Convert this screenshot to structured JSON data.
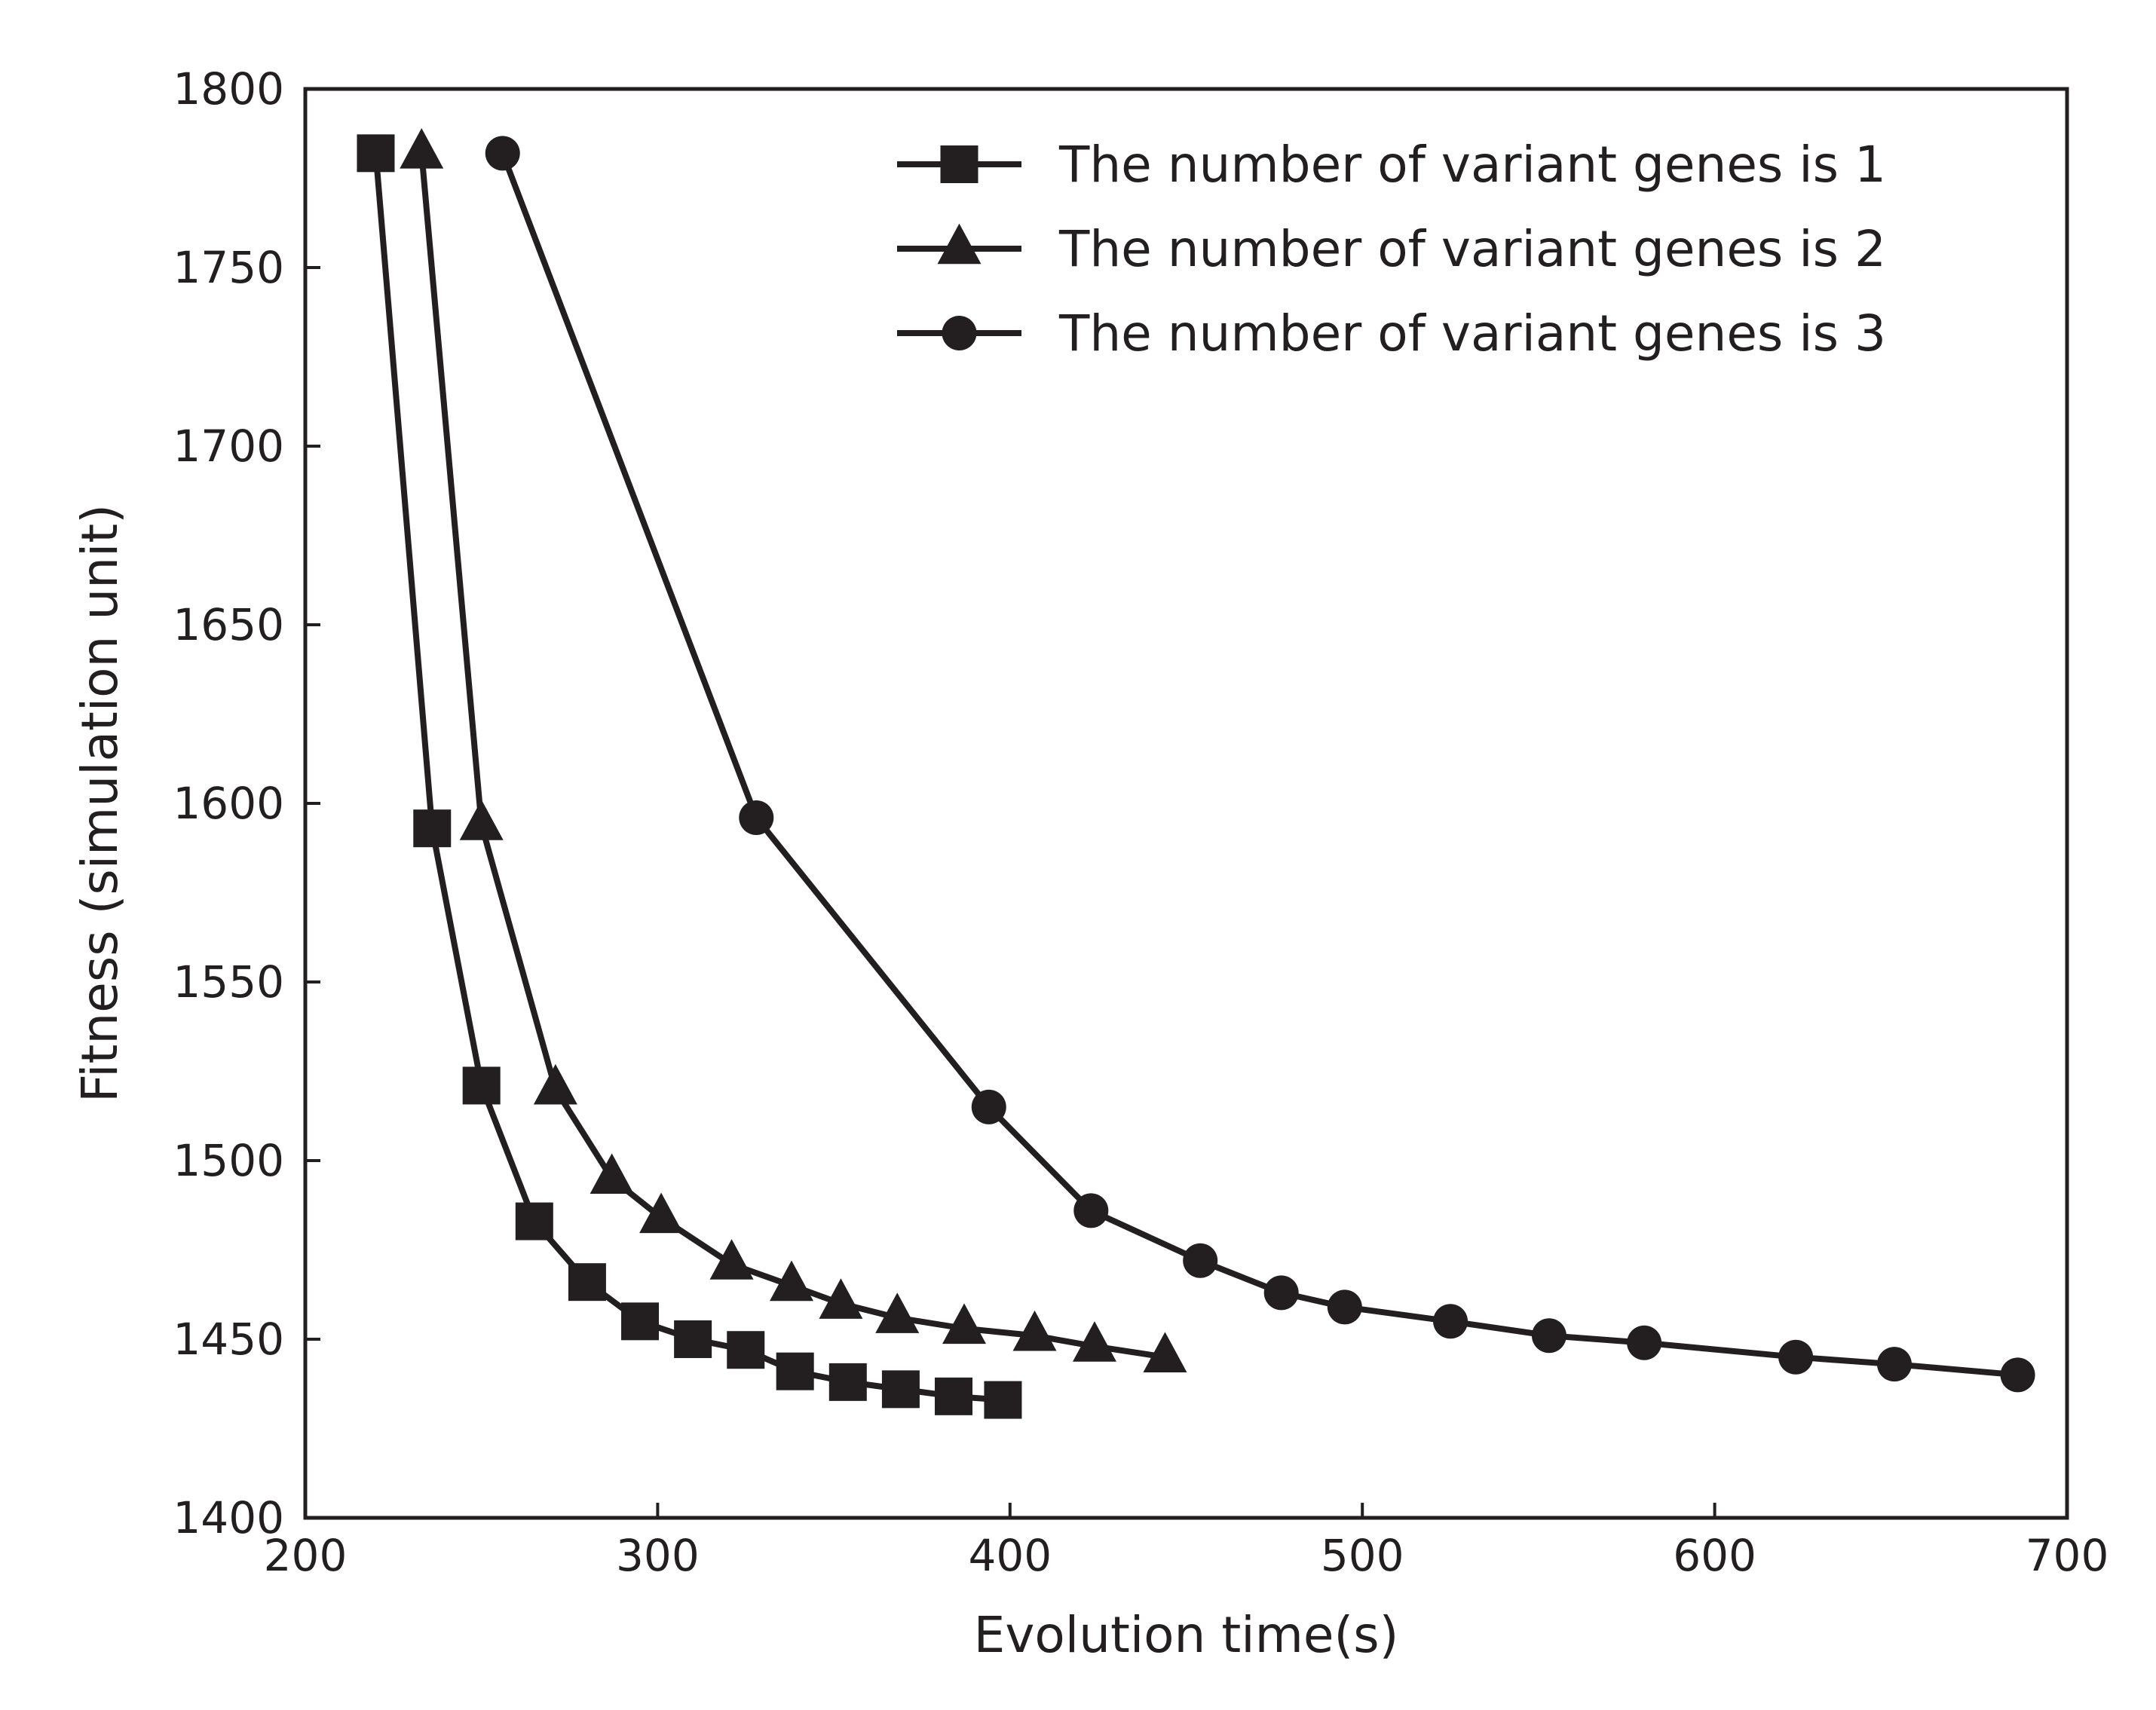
{
  "chart_data": {
    "type": "line",
    "title": "",
    "xlabel": "Evolution time(s)",
    "ylabel": "Fitness (simulation unit)",
    "xlim": [
      200,
      700
    ],
    "ylim": [
      1400,
      1800
    ],
    "xticks": [
      200,
      300,
      400,
      500,
      600,
      700
    ],
    "yticks": [
      1400,
      1450,
      1500,
      1550,
      1600,
      1650,
      1700,
      1750,
      1800
    ],
    "grid": false,
    "legend_position": "top-right",
    "line_color": "#231f20",
    "series": [
      {
        "name": "The number of variant genes is 1",
        "marker": "square",
        "x": [
          220,
          236,
          250,
          265,
          280,
          295,
          310,
          325,
          339,
          354,
          369,
          384,
          398
        ],
        "y": [
          1782,
          1593,
          1521,
          1483,
          1466,
          1455,
          1450,
          1447,
          1441,
          1438,
          1436,
          1434,
          1433
        ]
      },
      {
        "name": "The number of variant genes is 2",
        "marker": "triangle",
        "x": [
          233,
          250,
          271,
          287,
          301,
          321,
          338,
          352,
          368,
          387,
          407,
          424,
          444
        ],
        "y": [
          1782,
          1594,
          1520,
          1495,
          1484,
          1471,
          1465,
          1460,
          1456,
          1453,
          1451,
          1448,
          1445
        ]
      },
      {
        "name": "The number of variant genes is 3",
        "marker": "circle",
        "x": [
          256,
          328,
          394,
          423,
          454,
          477,
          495,
          525,
          553,
          580,
          623,
          651,
          686
        ],
        "y": [
          1782,
          1596,
          1515,
          1486,
          1472,
          1463,
          1459,
          1455,
          1451,
          1449,
          1445,
          1443,
          1440
        ]
      }
    ]
  }
}
